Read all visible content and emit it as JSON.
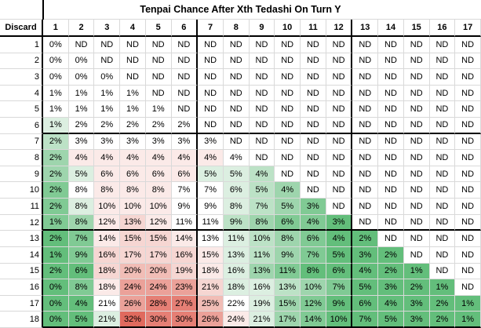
{
  "chart_data": {
    "type": "heatmap",
    "title": "Tenpai Chance After Xth Tedashi On Turn Y",
    "corner_label": "Discard",
    "x_axis_meaning": "Xth Tedashi",
    "y_axis_meaning": "Turn (Discard)",
    "no_data_label": "ND",
    "columns": [
      "1",
      "2",
      "3",
      "4",
      "5",
      "6",
      "7",
      "8",
      "9",
      "10",
      "11",
      "12",
      "13",
      "14",
      "15",
      "16",
      "17"
    ],
    "row_labels": [
      "1",
      "2",
      "3",
      "4",
      "5",
      "6",
      "7",
      "8",
      "9",
      "10",
      "11",
      "12",
      "13",
      "14",
      "15",
      "16",
      "17",
      "18"
    ],
    "cells": [
      [
        "0%",
        "ND",
        "ND",
        "ND",
        "ND",
        "ND",
        "ND",
        "ND",
        "ND",
        "ND",
        "ND",
        "ND",
        "ND",
        "ND",
        "ND",
        "ND",
        "ND"
      ],
      [
        "0%",
        "0%",
        "ND",
        "ND",
        "ND",
        "ND",
        "ND",
        "ND",
        "ND",
        "ND",
        "ND",
        "ND",
        "ND",
        "ND",
        "ND",
        "ND",
        "ND"
      ],
      [
        "0%",
        "0%",
        "0%",
        "ND",
        "ND",
        "ND",
        "ND",
        "ND",
        "ND",
        "ND",
        "ND",
        "ND",
        "ND",
        "ND",
        "ND",
        "ND",
        "ND"
      ],
      [
        "1%",
        "1%",
        "1%",
        "1%",
        "ND",
        "ND",
        "ND",
        "ND",
        "ND",
        "ND",
        "ND",
        "ND",
        "ND",
        "ND",
        "ND",
        "ND",
        "ND"
      ],
      [
        "1%",
        "1%",
        "1%",
        "1%",
        "1%",
        "ND",
        "ND",
        "ND",
        "ND",
        "ND",
        "ND",
        "ND",
        "ND",
        "ND",
        "ND",
        "ND",
        "ND"
      ],
      [
        "1%",
        "2%",
        "2%",
        "2%",
        "2%",
        "2%",
        "ND",
        "ND",
        "ND",
        "ND",
        "ND",
        "ND",
        "ND",
        "ND",
        "ND",
        "ND",
        "ND"
      ],
      [
        "2%",
        "3%",
        "3%",
        "3%",
        "3%",
        "3%",
        "3%",
        "ND",
        "ND",
        "ND",
        "ND",
        "ND",
        "ND",
        "ND",
        "ND",
        "ND",
        "ND"
      ],
      [
        "2%",
        "4%",
        "4%",
        "4%",
        "4%",
        "4%",
        "4%",
        "4%",
        "ND",
        "ND",
        "ND",
        "ND",
        "ND",
        "ND",
        "ND",
        "ND",
        "ND"
      ],
      [
        "2%",
        "5%",
        "6%",
        "6%",
        "6%",
        "6%",
        "5%",
        "5%",
        "4%",
        "ND",
        "ND",
        "ND",
        "ND",
        "ND",
        "ND",
        "ND",
        "ND"
      ],
      [
        "2%",
        "8%",
        "8%",
        "8%",
        "8%",
        "7%",
        "7%",
        "6%",
        "5%",
        "4%",
        "ND",
        "ND",
        "ND",
        "ND",
        "ND",
        "ND",
        "ND"
      ],
      [
        "2%",
        "8%",
        "10%",
        "10%",
        "10%",
        "9%",
        "9%",
        "8%",
        "7%",
        "5%",
        "3%",
        "ND",
        "ND",
        "ND",
        "ND",
        "ND",
        "ND"
      ],
      [
        "1%",
        "8%",
        "12%",
        "13%",
        "12%",
        "11%",
        "11%",
        "9%",
        "8%",
        "6%",
        "4%",
        "3%",
        "ND",
        "ND",
        "ND",
        "ND",
        "ND"
      ],
      [
        "2%",
        "7%",
        "14%",
        "15%",
        "15%",
        "14%",
        "13%",
        "11%",
        "10%",
        "8%",
        "6%",
        "4%",
        "2%",
        "ND",
        "ND",
        "ND",
        "ND"
      ],
      [
        "1%",
        "9%",
        "16%",
        "17%",
        "17%",
        "16%",
        "15%",
        "13%",
        "11%",
        "9%",
        "7%",
        "5%",
        "3%",
        "2%",
        "ND",
        "ND",
        "ND"
      ],
      [
        "2%",
        "6%",
        "18%",
        "20%",
        "20%",
        "19%",
        "18%",
        "16%",
        "13%",
        "11%",
        "8%",
        "6%",
        "4%",
        "2%",
        "1%",
        "ND",
        "ND"
      ],
      [
        "0%",
        "8%",
        "18%",
        "24%",
        "24%",
        "23%",
        "21%",
        "18%",
        "16%",
        "13%",
        "10%",
        "7%",
        "5%",
        "3%",
        "2%",
        "1%",
        "ND"
      ],
      [
        "0%",
        "4%",
        "21%",
        "26%",
        "28%",
        "27%",
        "25%",
        "22%",
        "19%",
        "15%",
        "12%",
        "9%",
        "6%",
        "4%",
        "3%",
        "2%",
        "1%"
      ],
      [
        "0%",
        "5%",
        "21%",
        "32%",
        "30%",
        "30%",
        "26%",
        "24%",
        "21%",
        "17%",
        "14%",
        "10%",
        "7%",
        "5%",
        "3%",
        "2%",
        "1%"
      ]
    ],
    "shades": [
      [
        0,
        0,
        0,
        0,
        0,
        0,
        0,
        0,
        0,
        0,
        0,
        0,
        0,
        0,
        0,
        0,
        0
      ],
      [
        0,
        0,
        0,
        0,
        0,
        0,
        0,
        0,
        0,
        0,
        0,
        0,
        0,
        0,
        0,
        0,
        0
      ],
      [
        0,
        0,
        0,
        0,
        0,
        0,
        0,
        0,
        0,
        0,
        0,
        0,
        0,
        0,
        0,
        0,
        0
      ],
      [
        0,
        0,
        0,
        0,
        0,
        0,
        0,
        0,
        0,
        0,
        0,
        0,
        0,
        0,
        0,
        0,
        0
      ],
      [
        0,
        0,
        0,
        0,
        0,
        0,
        0,
        0,
        0,
        0,
        0,
        0,
        0,
        0,
        0,
        0,
        0
      ],
      [
        -1,
        0,
        0,
        0,
        0,
        0,
        0,
        0,
        0,
        0,
        0,
        0,
        0,
        0,
        0,
        0,
        0
      ],
      [
        -2,
        0,
        0,
        0,
        0,
        0,
        0,
        0,
        0,
        0,
        0,
        0,
        0,
        0,
        0,
        0,
        0
      ],
      [
        -3,
        1,
        1,
        1,
        1,
        1,
        1,
        0,
        0,
        0,
        0,
        0,
        0,
        0,
        0,
        0,
        0
      ],
      [
        -3,
        -1,
        1,
        1,
        1,
        1,
        -1,
        -1,
        -2,
        0,
        0,
        0,
        0,
        0,
        0,
        0,
        0
      ],
      [
        -4,
        0,
        1,
        1,
        1,
        0,
        0,
        -1,
        -2,
        -3,
        0,
        0,
        0,
        0,
        0,
        0,
        0
      ],
      [
        -4,
        -1,
        1,
        1,
        1,
        0,
        0,
        -1,
        -2,
        -3,
        -4,
        0,
        0,
        0,
        0,
        0,
        0
      ],
      [
        -4,
        -3,
        1,
        2,
        1,
        0,
        0,
        -2,
        -3,
        -4,
        -4,
        -5,
        0,
        0,
        0,
        0,
        0
      ],
      [
        -5,
        -4,
        1,
        2,
        2,
        1,
        0,
        -1,
        -2,
        -3,
        -4,
        -5,
        -5,
        0,
        0,
        0,
        0
      ],
      [
        -5,
        -4,
        2,
        2,
        2,
        2,
        1,
        -1,
        -2,
        -3,
        -4,
        -5,
        -5,
        -5,
        0,
        0,
        0
      ],
      [
        -5,
        -5,
        2,
        3,
        3,
        2,
        1,
        -1,
        -3,
        -4,
        -5,
        -5,
        -5,
        -5,
        -5,
        0,
        0
      ],
      [
        -5,
        -4,
        1,
        4,
        4,
        4,
        2,
        -1,
        -1,
        -2,
        -3,
        -4,
        -5,
        -5,
        -5,
        -5,
        0
      ],
      [
        -5,
        -5,
        0,
        4,
        5,
        5,
        3,
        0,
        -1,
        -3,
        -4,
        -5,
        -5,
        -5,
        -5,
        -5,
        -5
      ],
      [
        -5,
        -5,
        -1,
        6,
        5,
        5,
        4,
        1,
        -1,
        -3,
        -4,
        -5,
        -5,
        -5,
        -5,
        -5,
        -5
      ]
    ],
    "palette": {
      "-5": "#63BE7B",
      "-4": "#80CA94",
      "-3": "#9ED5AD",
      "-2": "#BCE2C6",
      "-1": "#DCEFE1",
      "0": "#FFFFFF",
      "1": "#FBEAE8",
      "2": "#F6D6D2",
      "3": "#F1BDB6",
      "4": "#EBA199",
      "5": "#E57F75",
      "6": "#E06A5E"
    },
    "grid": {
      "thin_line_color": "#D9D9D9",
      "thick_line_color": "#000000",
      "thick_vertical_after_columns": [
        6,
        12
      ],
      "thick_horizontal_after_rows": [
        6,
        12,
        18
      ]
    }
  }
}
